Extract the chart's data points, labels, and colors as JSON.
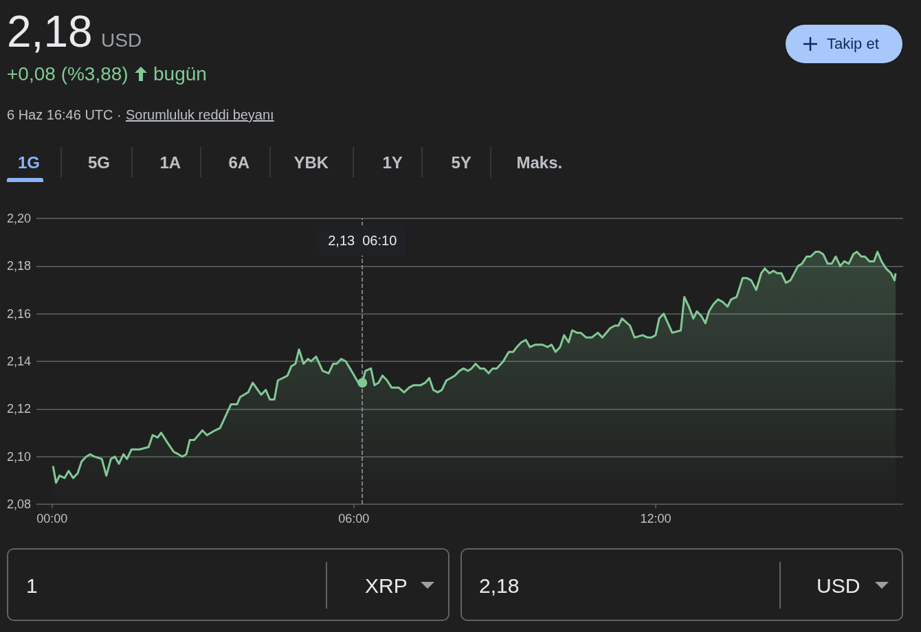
{
  "chart_data": {
    "type": "area",
    "title": "2,18",
    "subtitle": "USD",
    "color": "#81c995",
    "annotations": [
      "+0,08 (%3,88)",
      "bugün",
      "6 Haz 16:46 UTC ·",
      "Sorumluluk reddi beyanı",
      "Takip et",
      "1G",
      "5G",
      "1A",
      "6A",
      "YBK",
      "1Y",
      "5Y",
      "Maks.",
      "1",
      "XRP",
      "2,18",
      "USD",
      "2,13  06:10"
    ],
    "ref_lines": [
      {
        "axis": "x",
        "value": 6.17,
        "color": "#9aa0a6",
        "line_style": "dashed"
      }
    ],
    "xlim": [
      -0.31,
      16.92
    ],
    "xticks": [
      {
        "value": 0,
        "label": "00:00"
      },
      {
        "value": 6,
        "label": "06:00"
      },
      {
        "value": 12,
        "label": "12:00"
      }
    ],
    "ylim": [
      2.08,
      2.2
    ],
    "yticks": [
      {
        "value": 2.08,
        "label": "2,08"
      },
      {
        "value": 2.1,
        "label": "2,10"
      },
      {
        "value": 2.12,
        "label": "2,12"
      },
      {
        "value": 2.14,
        "label": "2,14"
      },
      {
        "value": 2.16,
        "label": "2,16"
      },
      {
        "value": 2.18,
        "label": "2,18"
      },
      {
        "value": 2.2,
        "label": "2,20"
      }
    ],
    "grid": "y",
    "x": [
      0.02,
      0.08,
      0.15,
      0.25,
      0.33,
      0.42,
      0.51,
      0.59,
      0.68,
      0.76,
      0.84,
      0.99,
      1.08,
      1.17,
      1.25,
      1.33,
      1.42,
      1.49,
      1.58,
      1.74,
      1.92,
      2.0,
      2.1,
      2.17,
      2.29,
      2.42,
      2.51,
      2.59,
      2.67,
      2.74,
      2.83,
      2.99,
      3.08,
      3.24,
      3.34,
      3.45,
      3.56,
      3.68,
      3.74,
      3.9,
      3.99,
      4.09,
      4.16,
      4.25,
      4.33,
      4.42,
      4.49,
      4.59,
      4.68,
      4.76,
      4.84,
      4.91,
      5.0,
      5.09,
      5.15,
      5.25,
      5.38,
      5.5,
      5.59,
      5.66,
      5.75,
      5.84,
      5.98,
      6.09,
      6.17,
      6.23,
      6.34,
      6.41,
      6.49,
      6.57,
      6.66,
      6.75,
      6.89,
      7.0,
      7.1,
      7.19,
      7.33,
      7.42,
      7.5,
      7.58,
      7.67,
      7.75,
      7.84,
      7.93,
      8.01,
      8.1,
      8.18,
      8.27,
      8.34,
      8.42,
      8.51,
      8.59,
      8.68,
      8.76,
      8.84,
      8.97,
      9.08,
      9.17,
      9.24,
      9.33,
      9.42,
      9.5,
      9.61,
      9.75,
      9.85,
      9.93,
      10.01,
      10.1,
      10.18,
      10.27,
      10.34,
      10.44,
      10.51,
      10.62,
      10.73,
      10.85,
      10.94,
      11.1,
      11.19,
      11.26,
      11.33,
      11.49,
      11.58,
      11.74,
      11.84,
      11.92,
      12.0,
      12.07,
      12.16,
      12.33,
      12.5,
      12.57,
      12.66,
      12.75,
      12.82,
      12.91,
      12.99,
      13.06,
      13.15,
      13.24,
      13.33,
      13.43,
      13.5,
      13.61,
      13.73,
      13.81,
      13.9,
      14.0,
      14.1,
      14.17,
      14.26,
      14.34,
      14.42,
      14.5,
      14.59,
      14.68,
      14.83,
      14.91,
      15.0,
      15.08,
      15.18,
      15.25,
      15.33,
      15.42,
      15.5,
      15.58,
      15.67,
      15.75,
      15.84,
      15.93,
      16.0,
      16.09,
      16.16,
      16.25,
      16.34,
      16.41,
      16.49,
      16.58,
      16.68,
      16.75,
      16.77
    ],
    "values": [
      2.096,
      2.089,
      2.092,
      2.091,
      2.094,
      2.091,
      2.093,
      2.098,
      2.1,
      2.101,
      2.1,
      2.099,
      2.092,
      2.099,
      2.1,
      2.097,
      2.101,
      2.099,
      2.103,
      2.103,
      2.104,
      2.109,
      2.108,
      2.11,
      2.106,
      2.102,
      2.101,
      2.1,
      2.101,
      2.107,
      2.107,
      2.111,
      2.109,
      2.111,
      2.112,
      2.117,
      2.122,
      2.122,
      2.125,
      2.127,
      2.131,
      2.128,
      2.126,
      2.128,
      2.124,
      2.124,
      2.132,
      2.133,
      2.134,
      2.138,
      2.139,
      2.145,
      2.139,
      2.141,
      2.14,
      2.142,
      2.136,
      2.135,
      2.139,
      2.139,
      2.141,
      2.14,
      2.135,
      2.131,
      2.131,
      2.136,
      2.137,
      2.13,
      2.131,
      2.134,
      2.132,
      2.129,
      2.129,
      2.127,
      2.129,
      2.13,
      2.13,
      2.131,
      2.133,
      2.128,
      2.127,
      2.128,
      2.132,
      2.133,
      2.134,
      2.136,
      2.137,
      2.136,
      2.137,
      2.139,
      2.137,
      2.137,
      2.135,
      2.137,
      2.137,
      2.14,
      2.144,
      2.144,
      2.146,
      2.148,
      2.149,
      2.146,
      2.147,
      2.147,
      2.146,
      2.147,
      2.144,
      2.146,
      2.151,
      2.148,
      2.153,
      2.152,
      2.152,
      2.15,
      2.15,
      2.152,
      2.15,
      2.154,
      2.155,
      2.155,
      2.158,
      2.155,
      2.15,
      2.151,
      2.15,
      2.15,
      2.151,
      2.158,
      2.16,
      2.152,
      2.153,
      2.167,
      2.163,
      2.158,
      2.161,
      2.159,
      2.156,
      2.161,
      2.164,
      2.166,
      2.165,
      2.163,
      2.166,
      2.167,
      2.175,
      2.175,
      2.174,
      2.17,
      2.177,
      2.179,
      2.177,
      2.178,
      2.177,
      2.177,
      2.173,
      2.174,
      2.18,
      2.181,
      2.184,
      2.184,
      2.186,
      2.186,
      2.185,
      2.181,
      2.181,
      2.184,
      2.18,
      2.182,
      2.181,
      2.185,
      2.186,
      2.184,
      2.184,
      2.182,
      2.182,
      2.186,
      2.182,
      2.179,
      2.177,
      2.174,
      2.177
    ]
  }
}
